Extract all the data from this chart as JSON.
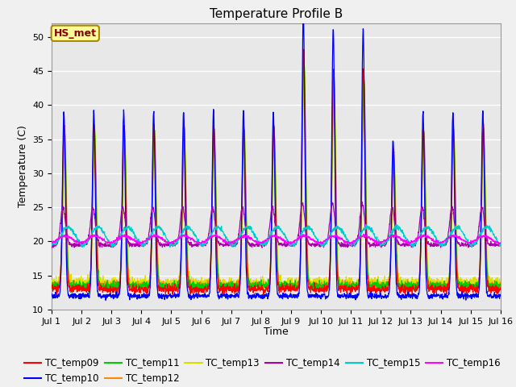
{
  "title": "Temperature Profile B",
  "xlabel": "Time",
  "ylabel": "Temperature (C)",
  "ylim": [
    10,
    52
  ],
  "xlim": [
    0,
    15
  ],
  "xtick_labels": [
    "Jul 1",
    "Jul 2",
    "Jul 3",
    "Jul 4",
    "Jul 5",
    "Jul 6",
    "Jul 7",
    "Jul 8",
    "Jul 9",
    "Jul 10",
    "Jul 11",
    "Jul 12",
    "Jul 13",
    "Jul 14",
    "Jul 15",
    "Jul 16"
  ],
  "annotation_text": "HS_met",
  "annotation_bg": "#FFFF99",
  "annotation_border": "#AA8800",
  "annotation_text_color": "#880000",
  "series_colors": {
    "TC_temp09": "#FF0000",
    "TC_temp10": "#0000FF",
    "TC_temp11": "#00CC00",
    "TC_temp12": "#FF8800",
    "TC_temp13": "#DDDD00",
    "TC_temp14": "#AA00AA",
    "TC_temp15": "#00CCCC",
    "TC_temp16": "#FF00FF"
  },
  "bg_color": "#E8E8E8",
  "grid_color": "#FFFFFF",
  "title_fontsize": 11,
  "label_fontsize": 9,
  "tick_fontsize": 8,
  "legend_fontsize": 8.5
}
